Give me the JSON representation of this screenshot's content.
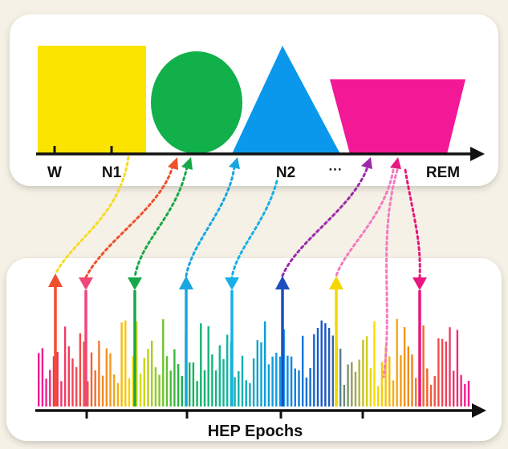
{
  "top_panel": {
    "labels": {
      "w": "W",
      "n1": "N1",
      "n2": "N2",
      "ellipsis": "···",
      "rem": "REM"
    },
    "shapes": [
      {
        "name": "square",
        "color": "#fbe400"
      },
      {
        "name": "circle",
        "color": "#11b04a"
      },
      {
        "name": "triangle",
        "color": "#0a98ec"
      },
      {
        "name": "trapezoid",
        "color": "#f21896"
      }
    ]
  },
  "bottom_panel": {
    "axis_label": "HEP Epochs",
    "bar_gradient": [
      "#f21896",
      "#f2553a",
      "#f7e000",
      "#18b04a",
      "#12b6a0",
      "#0c98ea",
      "#1753c4",
      "#f7e000",
      "#f26a25",
      "#f21896"
    ]
  },
  "connectors": [
    {
      "color": "#f7dc1e",
      "direction": "down"
    },
    {
      "color": "#f0502d",
      "direction": "up"
    },
    {
      "color": "#18a84a",
      "direction": "down"
    },
    {
      "color": "#1aa6e0",
      "direction": "up"
    },
    {
      "color": "#16b0e8",
      "direction": "down"
    },
    {
      "color": "#1c4fc0",
      "direction": "up"
    },
    {
      "color": "#9b2aa8",
      "direction": "down"
    },
    {
      "color": "#f57ac2",
      "direction": "down"
    },
    {
      "color": "#e8167f",
      "direction": "down"
    }
  ]
}
